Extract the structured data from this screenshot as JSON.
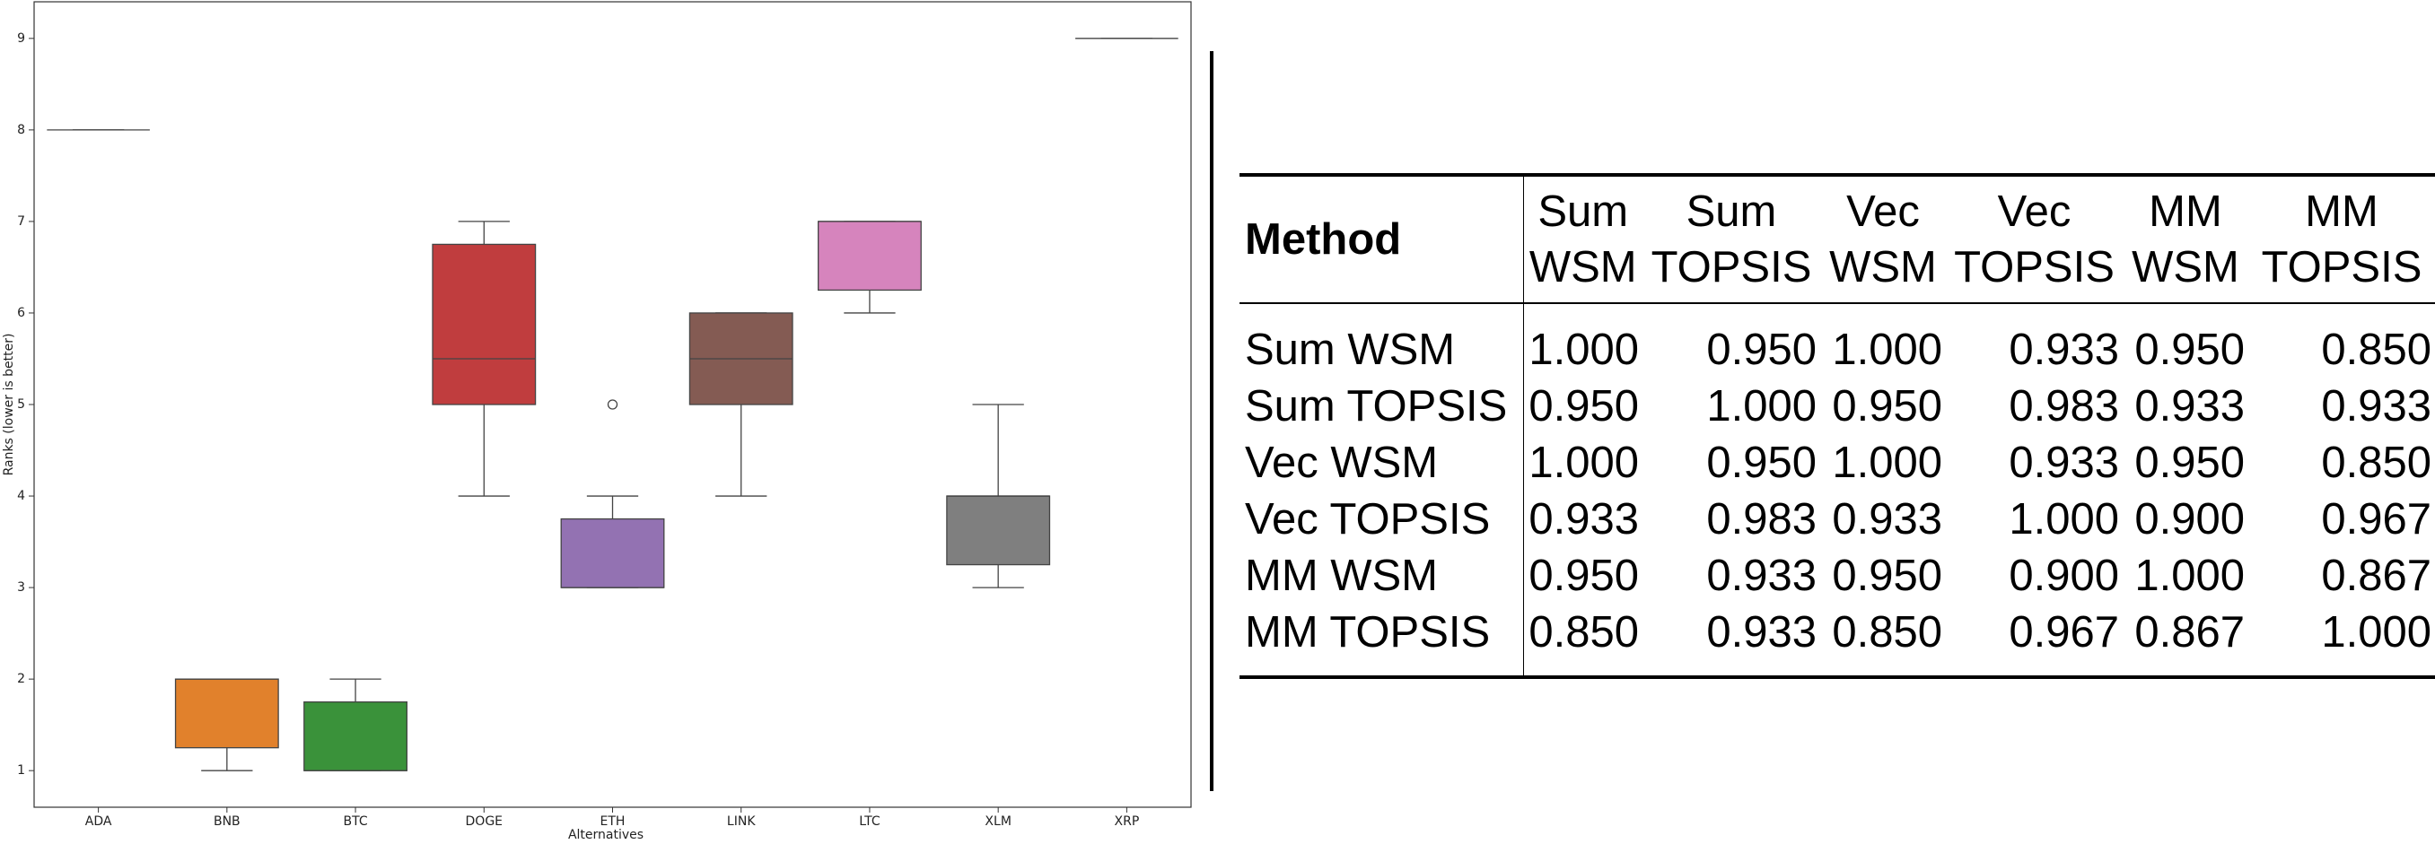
{
  "chart_data": {
    "type": "box",
    "x_label": "Alternatives",
    "y_label": "Ranks (lower is better)",
    "categories": [
      "ADA",
      "BNB",
      "BTC",
      "DOGE",
      "ETH",
      "LINK",
      "LTC",
      "XLM",
      "XRP"
    ],
    "colors": [
      "#3274a1",
      "#e1812c",
      "#3a923a",
      "#c03d3e",
      "#9372b2",
      "#845b53",
      "#d684bd",
      "#7f7f7f",
      "#a9aa35"
    ],
    "boxes": [
      {
        "min": 8,
        "q1": 8,
        "median": 8,
        "q3": 8,
        "max": 8
      },
      {
        "min": 1,
        "q1": 1.25,
        "median": 2,
        "q3": 2,
        "max": 2
      },
      {
        "min": 1,
        "q1": 1,
        "median": 1,
        "q3": 1.75,
        "max": 2
      },
      {
        "min": 4,
        "q1": 5,
        "median": 5.5,
        "q3": 6.75,
        "max": 7
      },
      {
        "min": 3,
        "q1": 3,
        "median": 3,
        "q3": 3.75,
        "max": 4,
        "outliers": [
          5
        ]
      },
      {
        "min": 4,
        "q1": 5,
        "median": 5.5,
        "q3": 6,
        "max": 6
      },
      {
        "min": 6,
        "q1": 6.25,
        "median": 7,
        "q3": 7,
        "max": 7
      },
      {
        "min": 3,
        "q1": 3.25,
        "median": 4,
        "q3": 4,
        "max": 5
      },
      {
        "min": 9,
        "q1": 9,
        "median": 9,
        "q3": 9,
        "max": 9
      }
    ],
    "ylim": [
      0.6,
      9.4
    ],
    "yticks": [
      1,
      2,
      3,
      4,
      5,
      6,
      7,
      8,
      9
    ]
  },
  "table": {
    "header": [
      "Method",
      "Sum WSM",
      "Sum TOPSIS",
      "Vec WSM",
      "Vec TOPSIS",
      "MM WSM",
      "MM TOPSIS"
    ],
    "rows": [
      [
        "Sum WSM",
        "1.000",
        "0.950",
        "1.000",
        "0.933",
        "0.950",
        "0.850"
      ],
      [
        "Sum TOPSIS",
        "0.950",
        "1.000",
        "0.950",
        "0.983",
        "0.933",
        "0.933"
      ],
      [
        "Vec WSM",
        "1.000",
        "0.950",
        "1.000",
        "0.933",
        "0.950",
        "0.850"
      ],
      [
        "Vec TOPSIS",
        "0.933",
        "0.983",
        "0.933",
        "1.000",
        "0.900",
        "0.967"
      ],
      [
        "MM WSM",
        "0.950",
        "0.933",
        "0.950",
        "0.900",
        "1.000",
        "0.867"
      ],
      [
        "MM TOPSIS",
        "0.850",
        "0.933",
        "0.850",
        "0.967",
        "0.867",
        "1.000"
      ]
    ]
  }
}
